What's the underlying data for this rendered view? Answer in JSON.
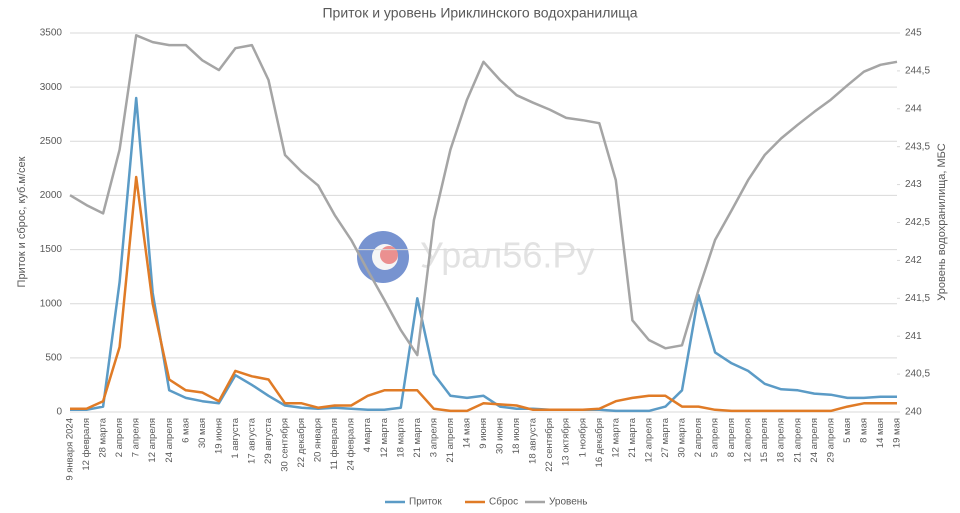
{
  "chart_data": {
    "type": "line",
    "title": "Приток и уровень Ириклинского водохранилища",
    "y_label": "Приток и сброс, куб.м/сек",
    "y2_label": "Уровень водохранилища, МБС",
    "watermark": "Урал56.Ру",
    "categories": [
      "9 января 2024",
      "12 февраля",
      "28 марта",
      "2 апреля",
      "7 апреля",
      "12 апреля",
      "24 апреля",
      "6 мая",
      "30 мая",
      "19 июня",
      "1 августа",
      "17 августа",
      "29 августа",
      "30 сентября",
      "22 декабря",
      "20 января",
      "11 февраля",
      "24 февраля",
      "4 марта",
      "12 марта",
      "18 марта",
      "21 марта",
      "3 апреля",
      "21 апреля",
      "14 мая",
      "9 июня",
      "30 июня",
      "18 июля",
      "18 августа",
      "22 сентября",
      "13 октября",
      "1 ноября",
      "16 декабря",
      "12 марта",
      "21 марта",
      "12 апреля",
      "27 марта",
      "30 марта",
      "2 апреля",
      "5 апреля",
      "8 апреля",
      "12 апреля",
      "15 апреля",
      "18 апреля",
      "21 апреля",
      "24 апреля",
      "29 апреля",
      "5 мая",
      "8 мая",
      "14 мая",
      "19 мая"
    ],
    "series": [
      {
        "name": "Приток",
        "color": "#5b9bc6",
        "values": [
          20,
          20,
          50,
          1200,
          2900,
          1100,
          200,
          130,
          100,
          80,
          340,
          250,
          150,
          60,
          40,
          30,
          40,
          30,
          20,
          20,
          40,
          1050,
          350,
          150,
          130,
          150,
          50,
          30,
          30,
          20,
          20,
          20,
          20,
          10,
          10,
          10,
          50,
          200,
          1080,
          550,
          450,
          380,
          260,
          210,
          200,
          170,
          160,
          130,
          130,
          140,
          140
        ]
      },
      {
        "name": "Сброс",
        "color": "#e07b26",
        "values": [
          30,
          30,
          100,
          600,
          2170,
          1000,
          300,
          200,
          180,
          100,
          380,
          330,
          300,
          80,
          80,
          40,
          60,
          60,
          150,
          200,
          200,
          200,
          30,
          10,
          10,
          80,
          70,
          60,
          20,
          20,
          20,
          20,
          30,
          100,
          130,
          150,
          150,
          50,
          50,
          20,
          10,
          10,
          10,
          10,
          10,
          10,
          10,
          50,
          80,
          80,
          80
        ]
      },
      {
        "name": "Уровень",
        "color": "#a5a5a5",
        "axis": "y2",
        "values": [
          242.86,
          242.73,
          242.62,
          243.46,
          244.97,
          244.88,
          244.84,
          244.84,
          244.64,
          244.51,
          244.8,
          244.84,
          244.38,
          243.39,
          243.17,
          242.99,
          242.6,
          242.27,
          241.87,
          241.48,
          241.08,
          240.75,
          242.53,
          243.46,
          244.12,
          244.62,
          244.38,
          244.18,
          244.08,
          243.99,
          243.88,
          243.85,
          243.81,
          243.06,
          241.21,
          240.95,
          240.84,
          240.88,
          241.61,
          242.27,
          242.66,
          243.06,
          243.39,
          243.61,
          243.79,
          243.96,
          244.12,
          244.31,
          244.49,
          244.58,
          244.62
        ]
      }
    ],
    "ylim": [
      0,
      3500
    ],
    "yticks": [
      0,
      500,
      1000,
      1500,
      2000,
      2500,
      3000,
      3500
    ],
    "y2lim": [
      240,
      245
    ],
    "y2ticks": [
      240,
      {
        "value": 240.5,
        "label": "240,5"
      },
      241,
      {
        "value": 241.5,
        "label": "241,5"
      },
      242,
      {
        "value": 242.5,
        "label": "242,5"
      },
      243,
      {
        "value": 243.5,
        "label": "243,5"
      },
      244,
      {
        "value": 244.5,
        "label": "244,5"
      },
      245
    ],
    "grid": true,
    "legend": "bottom"
  }
}
